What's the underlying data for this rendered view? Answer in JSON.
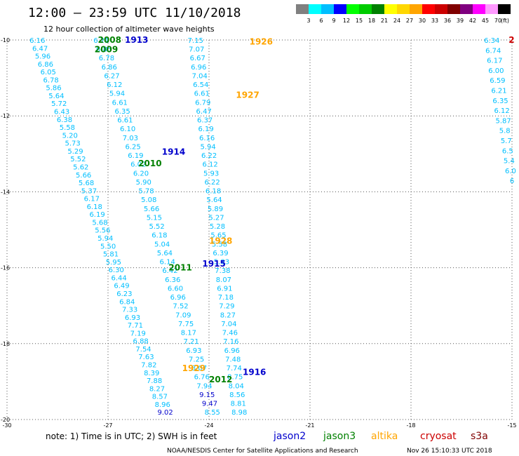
{
  "header": {
    "title": "12:00 – 23:59 UTC 11/10/2018",
    "subtitle": "12 hour collection of altimeter wave heights"
  },
  "legend": {
    "labels": [
      "3",
      "6",
      "9",
      "12",
      "15",
      "18",
      "21",
      "24",
      "27",
      "30",
      "33",
      "36",
      "39",
      "42",
      "45",
      "70",
      "(ft)"
    ],
    "colors": [
      "#808080",
      "#00ffff",
      "#00bfff",
      "#0000ff",
      "#00ff00",
      "#00cc00",
      "#008000",
      "#ffff00",
      "#ffd700",
      "#ffa500",
      "#ff0000",
      "#cc0000",
      "#800000",
      "#800080",
      "#ff00ff",
      "#ff99ff",
      "#000000"
    ]
  },
  "map": {
    "x_ticks": [
      "-30",
      "-27",
      "-24",
      "-21",
      "-18",
      "-15"
    ],
    "y_ticks": [
      "-10",
      "-12",
      "-14",
      "-16",
      "-18",
      "-20"
    ],
    "lon_range": [
      -30,
      -15
    ],
    "lat_range": [
      -20,
      -10
    ]
  },
  "tracks": [
    {
      "name": "track-a",
      "start": [
        -29.1,
        -10.0
      ],
      "end": [
        -25.3,
        -19.8
      ],
      "color": "#00bfff",
      "values": [
        "6.16",
        "6.47",
        "5.96",
        "6.86",
        "6.05",
        "6.78",
        "5.86",
        "5.64",
        "5.72",
        "6.43",
        "6.38",
        "5.58",
        "5.20",
        "5.73",
        "5.29",
        "5.52",
        "5.62",
        "5.66",
        "5.68",
        "5.37",
        "6.17",
        "6.18",
        "6.19",
        "5.68",
        "5.56",
        "5.94",
        "5.50",
        "5.81",
        "5.95",
        "6.30",
        "6.44",
        "6.49",
        "6.23",
        "6.84",
        "7.33",
        "6.93",
        "7.71",
        "7.19",
        "6.88",
        "7.54",
        "7.63",
        "7.82",
        "8.39",
        "7.88",
        "8.27",
        "8.57",
        "8.96",
        "9.02"
      ]
    },
    {
      "name": "track-b",
      "start": [
        -27.2,
        -10.0
      ],
      "end": [
        -23.9,
        -19.8
      ],
      "color": "#00bfff",
      "values": [
        "6.21",
        "6.85",
        "6.78",
        "6.86",
        "6.27",
        "6.12",
        "5.94",
        "6.61",
        "6.35",
        "6.61",
        "6.10",
        "7.03",
        "6.25",
        "6.19",
        "6.02",
        "6.20",
        "5.90",
        "5.78",
        "5.08",
        "5.66",
        "5.15",
        "5.52",
        "6.18",
        "5.04",
        "5.64",
        "6.14",
        "6.42",
        "6.36",
        "6.60",
        "6.96",
        "7.52",
        "7.09",
        "7.75",
        "8.17",
        "7.21",
        "6.93",
        "7.25",
        "8.07",
        "6.76",
        "7.94",
        "9.15",
        "9.47",
        "8.55"
      ]
    },
    {
      "name": "track-c",
      "start": [
        -24.4,
        -10.0
      ],
      "end": [
        -23.1,
        -19.8
      ],
      "color": "#00bfff",
      "values": [
        "7.15",
        "7.07",
        "6.67",
        "6.96",
        "7.04",
        "6.54",
        "6.61",
        "6.79",
        "6.47",
        "6.37",
        "6.19",
        "6.16",
        "5.94",
        "6.22",
        "6.12",
        "5.93",
        "6.22",
        "6.18",
        "5.64",
        "5.89",
        "5.27",
        "5.28",
        "5.65",
        "5.58",
        "6.39",
        "5.83",
        "7.38",
        "8.07",
        "6.91",
        "7.18",
        "7.29",
        "8.27",
        "7.04",
        "7.46",
        "7.16",
        "6.96",
        "7.48",
        "7.74",
        "8.75",
        "8.04",
        "8.56",
        "8.81",
        "8.98"
      ]
    },
    {
      "name": "track-d",
      "start": [
        -15.6,
        -10.0
      ],
      "end": [
        -15.0,
        -13.7
      ],
      "color": "#00bfff",
      "values": [
        "6.34",
        "6.74",
        "6.17",
        "6.00",
        "6.59",
        "6.21",
        "6.35",
        "6.12",
        "5.87",
        "5.8",
        "5.7",
        "6.5",
        "5.4",
        "6.0",
        "6"
      ]
    }
  ],
  "pass_labels": [
    {
      "text": "2008",
      "lon": -27.3,
      "lat": -10.0,
      "color": "#008000"
    },
    {
      "text": "2009",
      "lon": -27.4,
      "lat": -10.25,
      "color": "#008000"
    },
    {
      "text": "1913",
      "lon": -26.5,
      "lat": -10.0,
      "color": "#0000cc"
    },
    {
      "text": "1926",
      "lon": -22.8,
      "lat": -10.05,
      "color": "#ffa500"
    },
    {
      "text": "1927",
      "lon": -23.2,
      "lat": -11.45,
      "color": "#ffa500"
    },
    {
      "text": "1914",
      "lon": -25.4,
      "lat": -12.95,
      "color": "#0000cc"
    },
    {
      "text": "2010",
      "lon": -26.1,
      "lat": -13.25,
      "color": "#008000"
    },
    {
      "text": "1928",
      "lon": -24.0,
      "lat": -15.3,
      "color": "#ffa500"
    },
    {
      "text": "1915",
      "lon": -24.2,
      "lat": -15.9,
      "color": "#0000cc"
    },
    {
      "text": "2011",
      "lon": -25.2,
      "lat": -16.0,
      "color": "#008000"
    },
    {
      "text": "1929",
      "lon": -24.8,
      "lat": -18.65,
      "color": "#ffa500"
    },
    {
      "text": "1916",
      "lon": -23.0,
      "lat": -18.75,
      "color": "#0000cc"
    },
    {
      "text": "2012",
      "lon": -24.0,
      "lat": -18.95,
      "color": "#008000"
    },
    {
      "text": "2",
      "lon": -15.1,
      "lat": -10.0,
      "color": "#cc0000"
    }
  ],
  "footer": {
    "note": "note: 1) Time is in UTC; 2) SWH is in feet",
    "satellites": [
      {
        "name": "jason2",
        "color": "#0000cc"
      },
      {
        "name": "jason3",
        "color": "#008000"
      },
      {
        "name": "altika",
        "color": "#ffa500"
      },
      {
        "name": "cryosat",
        "color": "#cc0000"
      },
      {
        "name": "s3a",
        "color": "#800000"
      }
    ],
    "credit": "NOAA/NESDIS Center for Satellite Applications and Research",
    "timestamp": "Nov 26 15:10:33 UTC 2018"
  }
}
